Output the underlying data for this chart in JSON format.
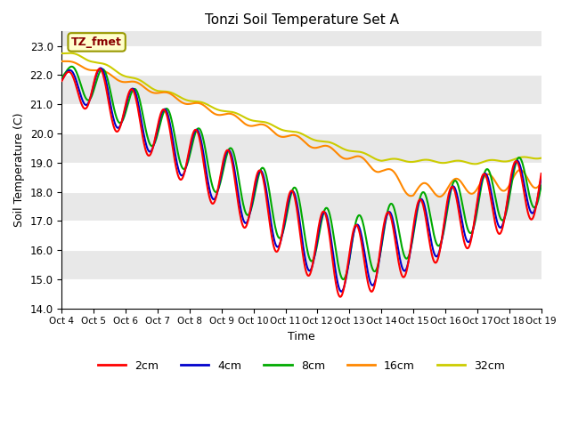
{
  "title": "Tonzi Soil Temperature Set A",
  "xlabel": "Time",
  "ylabel": "Soil Temperature (C)",
  "ylim": [
    14.0,
    23.5
  ],
  "yticks": [
    14.0,
    15.0,
    16.0,
    17.0,
    18.0,
    19.0,
    20.0,
    21.0,
    22.0,
    23.0
  ],
  "xtick_labels": [
    "Oct 4",
    "Oct 5",
    "Oct 6",
    "Oct 7",
    "Oct 8",
    "Oct 9",
    "Oct 10",
    "Oct 11",
    "Oct 12",
    "Oct 13",
    "Oct 14",
    "Oct 15",
    "Oct 16",
    "Oct 17",
    "Oct 18",
    "Oct 19"
  ],
  "colors": {
    "2cm": "#ff0000",
    "4cm": "#0000cc",
    "8cm": "#00aa00",
    "16cm": "#ff8800",
    "32cm": "#cccc00"
  },
  "annotation_text": "TZ_fmet",
  "background_color": "#ffffff",
  "plot_bg_color": "#e8e8e8",
  "n_points": 720
}
